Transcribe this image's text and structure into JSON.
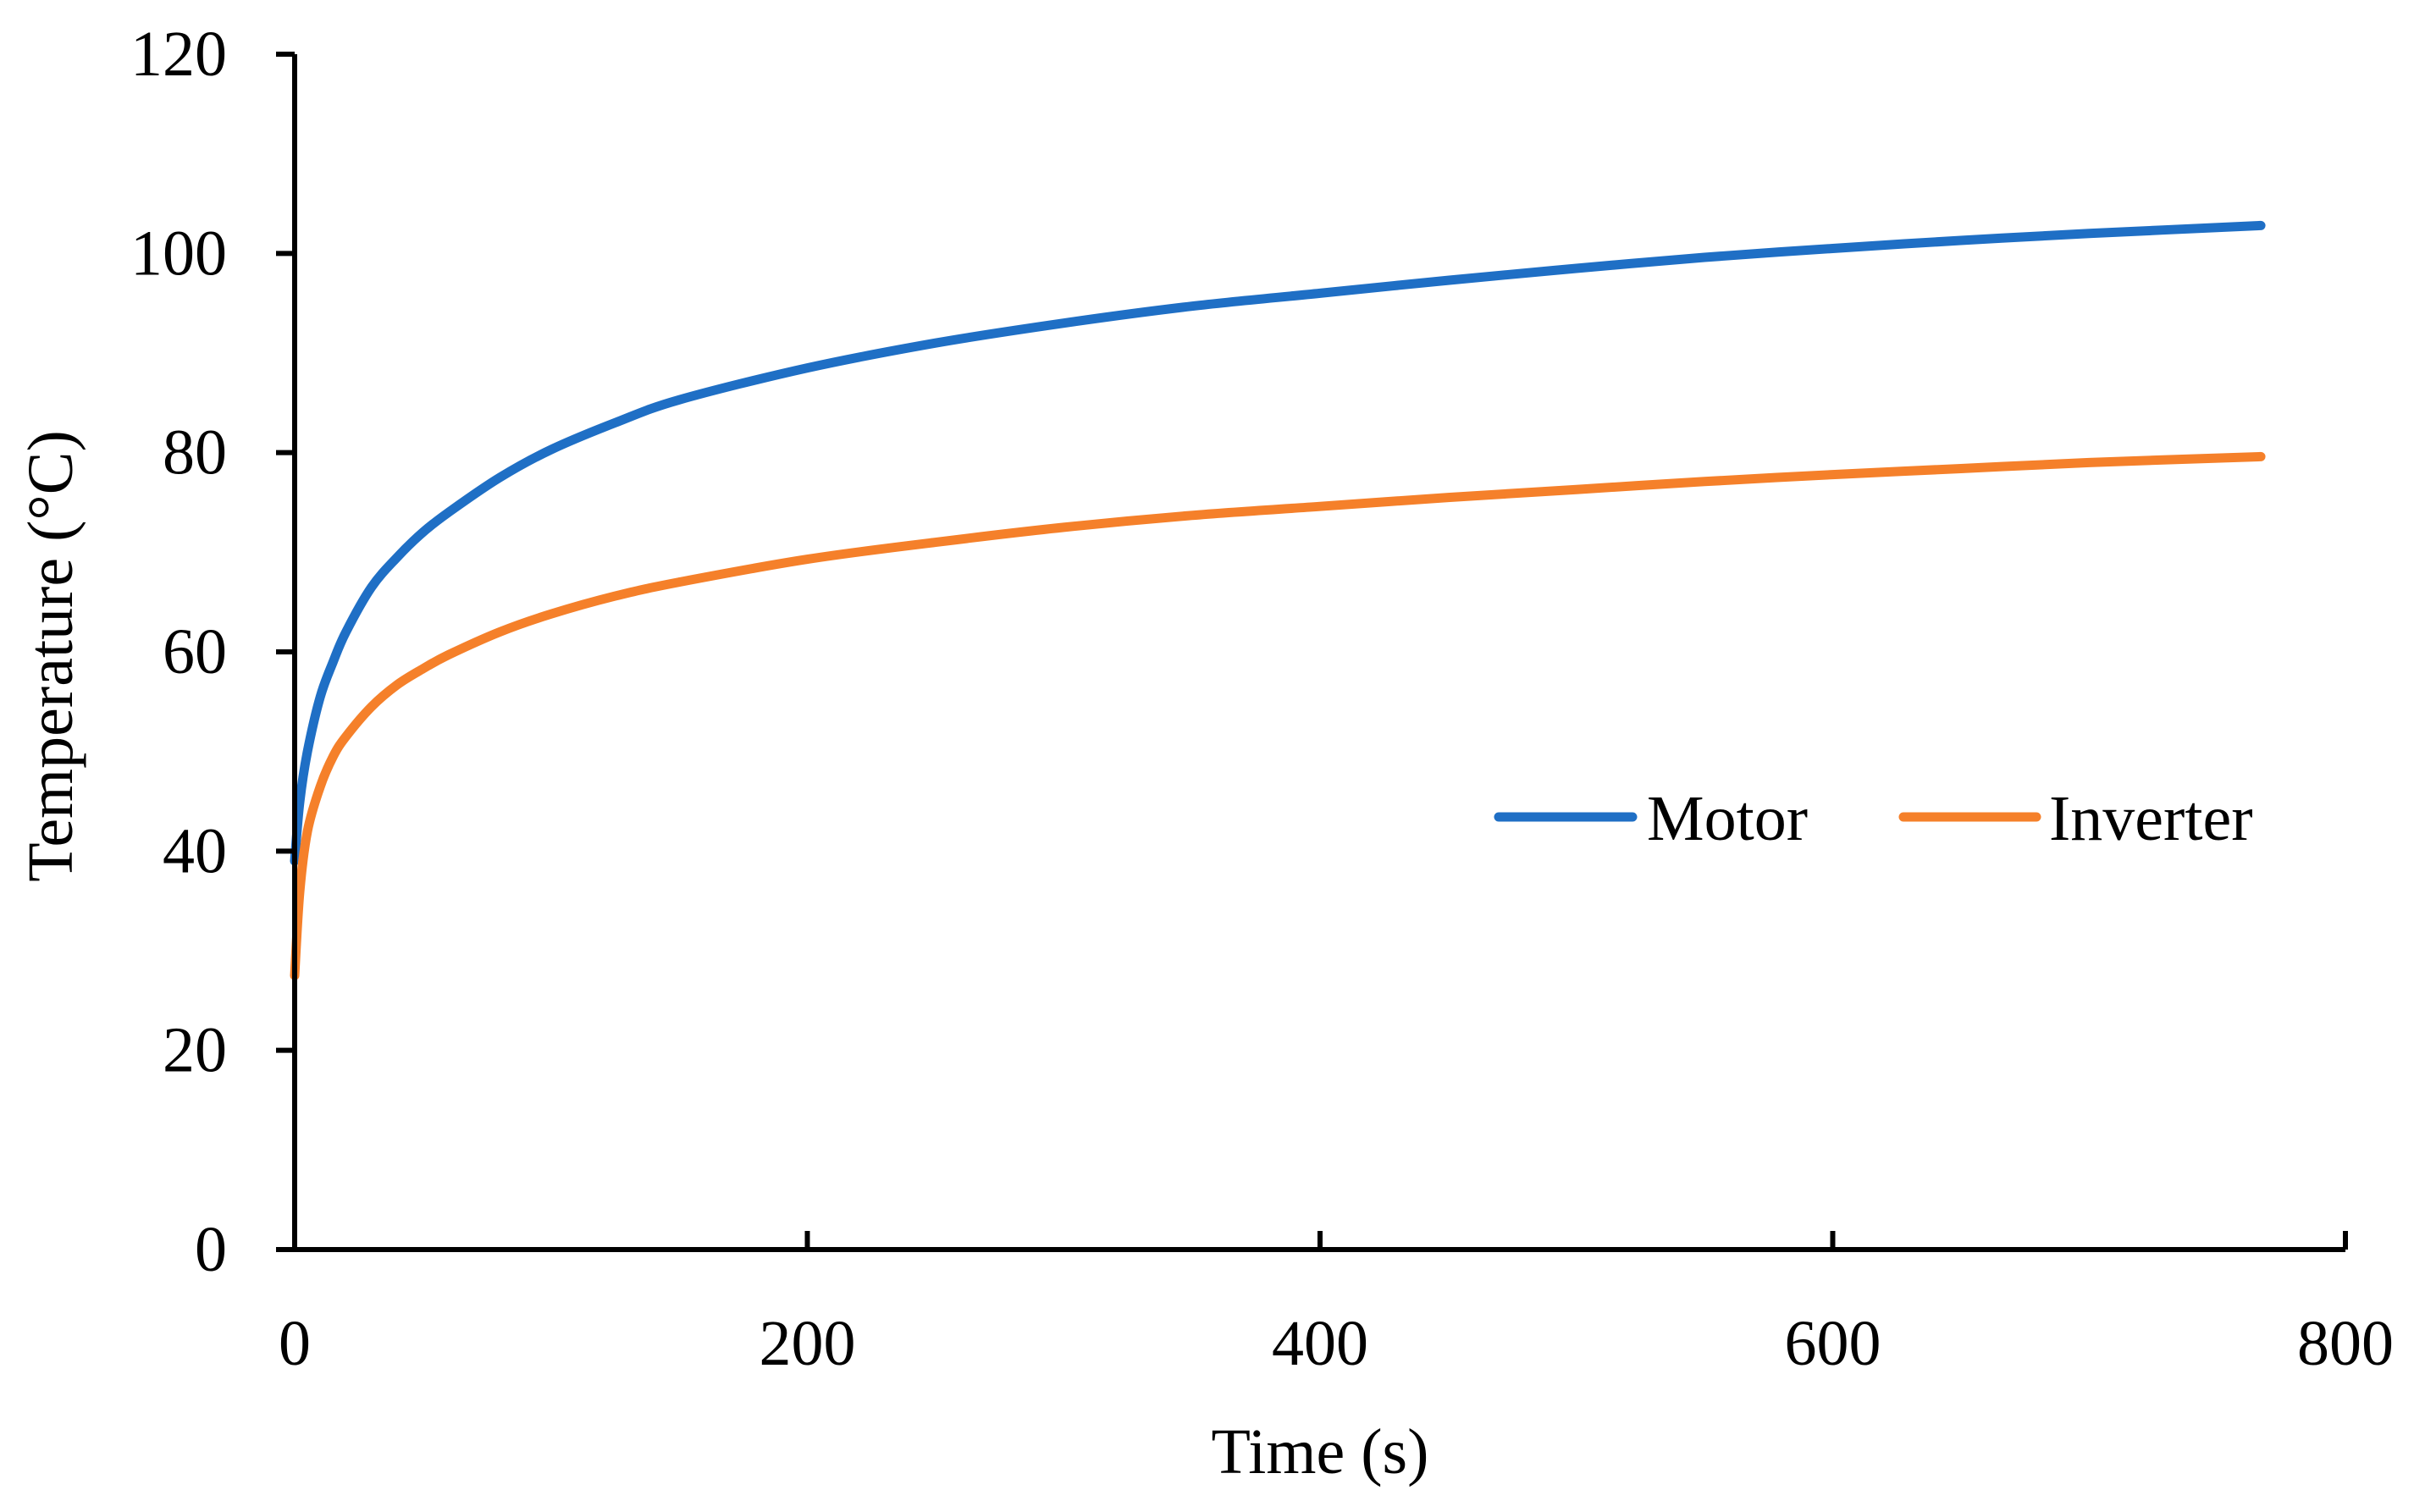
{
  "chart_data": {
    "type": "line",
    "title": "",
    "xlabel": "Time (s)",
    "ylabel": "Temperature (°C)",
    "xlim": [
      0,
      800
    ],
    "ylim": [
      0,
      120
    ],
    "xticks": [
      0,
      200,
      400,
      600,
      800
    ],
    "yticks": [
      0,
      20,
      40,
      60,
      80,
      100,
      120
    ],
    "grid": false,
    "legend_position": "center-right",
    "series": [
      {
        "name": "Motor",
        "color": "#1F6FC5",
        "x": [
          0,
          2,
          5,
          10,
          15,
          20,
          30,
          40,
          50,
          60,
          80,
          100,
          125,
          150,
          200,
          250,
          300,
          350,
          400,
          450,
          500,
          550,
          600,
          650,
          700,
          767
        ],
        "y": [
          39,
          45,
          50,
          55.5,
          59,
          62,
          66.5,
          69.5,
          72,
          74,
          77.5,
          80.3,
          83,
          85.3,
          88.5,
          91,
          93,
          94.7,
          96,
          97.3,
          98.5,
          99.6,
          100.5,
          101.3,
          102,
          102.8
        ]
      },
      {
        "name": "Inverter",
        "color": "#F5802A",
        "x": [
          0,
          2,
          5,
          10,
          15,
          20,
          30,
          40,
          50,
          60,
          80,
          100,
          125,
          150,
          200,
          250,
          300,
          350,
          400,
          450,
          500,
          550,
          600,
          650,
          700,
          767
        ],
        "y": [
          27.5,
          36,
          42,
          46.5,
          49.5,
          51.5,
          54.5,
          56.7,
          58.3,
          59.7,
          62,
          63.8,
          65.6,
          67,
          69.3,
          71,
          72.5,
          73.7,
          74.6,
          75.5,
          76.3,
          77.1,
          77.8,
          78.4,
          79,
          79.6
        ]
      }
    ]
  }
}
